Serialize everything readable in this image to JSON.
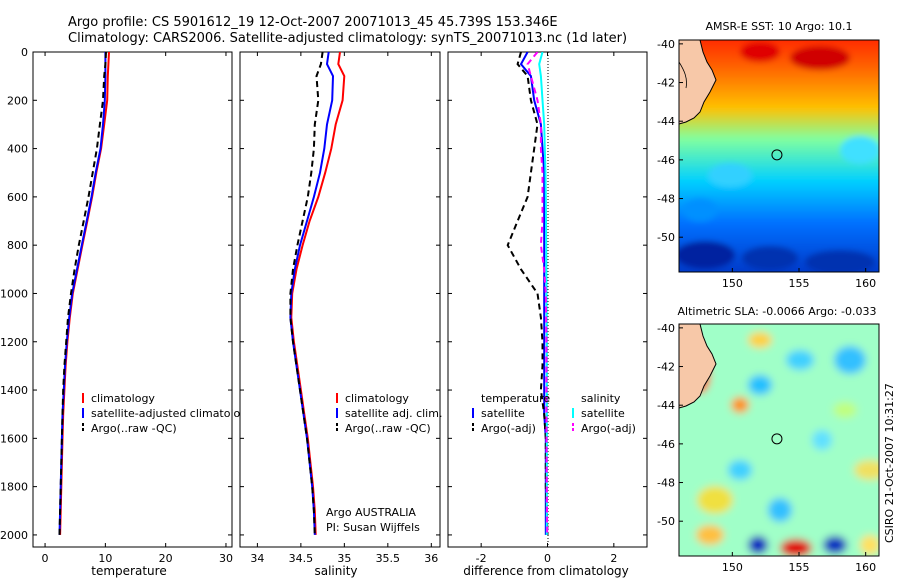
{
  "header": {
    "line1": "Argo profile: CS 5901612_19 12-Oct-2007 20071013_45 45.739S 153.346E",
    "line2": "Climatology: CARS2006. Satellite-adjusted climatology: synTS_20071013.nc (1d later)"
  },
  "side_note": "CSIRO 21-Oct-2007 10:31:27",
  "colors": {
    "climatology": "#ff0000",
    "satellite": "#0000ff",
    "argo": "#000000",
    "sal_satellite": "#00ffff",
    "sal_argo": "#ff00ff",
    "land": "#f7c8a8"
  },
  "chart_data": [
    {
      "type": "line",
      "id": "temperature-profile",
      "xlabel": "temperature",
      "xlim": [
        -2,
        31
      ],
      "ylim": [
        2050,
        0
      ],
      "xticks": [
        "0",
        "10",
        "20",
        "30"
      ],
      "xtick_values": [
        0,
        10,
        20,
        30
      ],
      "yticks": [
        "0",
        "200",
        "400",
        "600",
        "800",
        "1000",
        "1200",
        "1400",
        "1600",
        "1800",
        "2000"
      ],
      "ytick_values": [
        0,
        200,
        400,
        600,
        800,
        1000,
        1200,
        1400,
        1600,
        1800,
        2000
      ],
      "legend": [
        "climatology",
        "satellite-adjusted climatology",
        "Argo(..raw -QC)"
      ],
      "series": [
        {
          "name": "climatology",
          "color": "#ff0000",
          "dash": false,
          "points": [
            [
              10.6,
              0
            ],
            [
              10.5,
              50
            ],
            [
              10.4,
              100
            ],
            [
              10.3,
              200
            ],
            [
              9.8,
              300
            ],
            [
              9.3,
              400
            ],
            [
              8.5,
              500
            ],
            [
              7.8,
              600
            ],
            [
              7.0,
              700
            ],
            [
              6.2,
              800
            ],
            [
              5.4,
              900
            ],
            [
              4.6,
              1000
            ],
            [
              4.1,
              1100
            ],
            [
              3.7,
              1200
            ],
            [
              3.4,
              1300
            ],
            [
              3.2,
              1400
            ],
            [
              3.0,
              1500
            ],
            [
              2.9,
              1600
            ],
            [
              2.8,
              1700
            ],
            [
              2.7,
              1800
            ],
            [
              2.6,
              1900
            ],
            [
              2.5,
              2000
            ]
          ]
        },
        {
          "name": "satellite-adjusted climatology",
          "color": "#0000ff",
          "dash": false,
          "points": [
            [
              10.0,
              0
            ],
            [
              10.0,
              50
            ],
            [
              10.0,
              100
            ],
            [
              9.9,
              200
            ],
            [
              9.6,
              300
            ],
            [
              9.2,
              400
            ],
            [
              8.4,
              500
            ],
            [
              7.7,
              600
            ],
            [
              6.9,
              700
            ],
            [
              6.1,
              800
            ],
            [
              5.3,
              900
            ],
            [
              4.5,
              1000
            ],
            [
              4.0,
              1100
            ],
            [
              3.6,
              1200
            ],
            [
              3.3,
              1300
            ],
            [
              3.1,
              1400
            ],
            [
              2.9,
              1500
            ],
            [
              2.8,
              1600
            ],
            [
              2.7,
              1700
            ],
            [
              2.6,
              1800
            ],
            [
              2.5,
              1900
            ],
            [
              2.4,
              2000
            ]
          ]
        },
        {
          "name": "Argo(..raw -QC)",
          "color": "#000000",
          "dash": true,
          "points": [
            [
              10.1,
              0
            ],
            [
              10.0,
              50
            ],
            [
              9.8,
              100
            ],
            [
              9.6,
              200
            ],
            [
              9.1,
              300
            ],
            [
              8.6,
              400
            ],
            [
              7.9,
              500
            ],
            [
              7.2,
              600
            ],
            [
              6.4,
              700
            ],
            [
              5.6,
              800
            ],
            [
              4.9,
              900
            ],
            [
              4.3,
              1000
            ],
            [
              3.8,
              1100
            ],
            [
              3.5,
              1200
            ],
            [
              3.2,
              1300
            ],
            [
              3.0,
              1400
            ],
            [
              2.9,
              1500
            ],
            [
              2.8,
              1600
            ],
            [
              2.7,
              1700
            ],
            [
              2.6,
              1800
            ],
            [
              2.5,
              1900
            ],
            [
              2.4,
              2000
            ]
          ]
        }
      ]
    },
    {
      "type": "line",
      "id": "salinity-profile",
      "xlabel": "salinity",
      "xlim": [
        33.8,
        36.1
      ],
      "ylim": [
        2050,
        0
      ],
      "xticks": [
        "34",
        "34.5",
        "35",
        "35.5",
        "36"
      ],
      "xtick_values": [
        34,
        34.5,
        35,
        35.5,
        36
      ],
      "legend": [
        "climatology",
        "satellite adj. clim.",
        "Argo(..raw -QC)"
      ],
      "annotation": [
        "Argo AUSTRALIA",
        "PI: Susan Wijffels"
      ],
      "series": [
        {
          "name": "climatology",
          "color": "#ff0000",
          "dash": false,
          "points": [
            [
              34.95,
              0
            ],
            [
              34.93,
              50
            ],
            [
              35.0,
              100
            ],
            [
              34.98,
              200
            ],
            [
              34.9,
              300
            ],
            [
              34.85,
              400
            ],
            [
              34.78,
              500
            ],
            [
              34.7,
              600
            ],
            [
              34.6,
              700
            ],
            [
              34.52,
              800
            ],
            [
              34.45,
              900
            ],
            [
              34.4,
              1000
            ],
            [
              34.39,
              1100
            ],
            [
              34.42,
              1200
            ],
            [
              34.46,
              1300
            ],
            [
              34.5,
              1400
            ],
            [
              34.54,
              1500
            ],
            [
              34.58,
              1600
            ],
            [
              34.61,
              1700
            ],
            [
              34.64,
              1800
            ],
            [
              34.66,
              1900
            ],
            [
              34.67,
              2000
            ]
          ]
        },
        {
          "name": "satellite adj. clim.",
          "color": "#0000ff",
          "dash": false,
          "points": [
            [
              34.82,
              0
            ],
            [
              34.8,
              50
            ],
            [
              34.87,
              100
            ],
            [
              34.86,
              200
            ],
            [
              34.8,
              300
            ],
            [
              34.77,
              400
            ],
            [
              34.72,
              500
            ],
            [
              34.65,
              600
            ],
            [
              34.57,
              700
            ],
            [
              34.49,
              800
            ],
            [
              34.43,
              900
            ],
            [
              34.39,
              1000
            ],
            [
              34.38,
              1100
            ],
            [
              34.41,
              1200
            ],
            [
              34.45,
              1300
            ],
            [
              34.49,
              1400
            ],
            [
              34.53,
              1500
            ],
            [
              34.57,
              1600
            ],
            [
              34.6,
              1700
            ],
            [
              34.63,
              1800
            ],
            [
              34.65,
              1900
            ],
            [
              34.66,
              2000
            ]
          ]
        },
        {
          "name": "Argo(..raw -QC)",
          "color": "#000000",
          "dash": true,
          "points": [
            [
              34.75,
              0
            ],
            [
              34.73,
              50
            ],
            [
              34.68,
              100
            ],
            [
              34.7,
              200
            ],
            [
              34.66,
              300
            ],
            [
              34.65,
              400
            ],
            [
              34.62,
              500
            ],
            [
              34.58,
              600
            ],
            [
              34.52,
              700
            ],
            [
              34.46,
              800
            ],
            [
              34.41,
              900
            ],
            [
              34.38,
              1000
            ],
            [
              34.38,
              1100
            ],
            [
              34.41,
              1200
            ],
            [
              34.45,
              1300
            ],
            [
              34.49,
              1400
            ],
            [
              34.53,
              1500
            ],
            [
              34.57,
              1600
            ],
            [
              34.6,
              1700
            ],
            [
              34.63,
              1800
            ],
            [
              34.65,
              1900
            ],
            [
              34.66,
              2000
            ]
          ]
        }
      ]
    },
    {
      "type": "line",
      "id": "difference-profile",
      "xlabel": "difference from climatology",
      "xlim": [
        -3,
        3
      ],
      "ylim": [
        2050,
        0
      ],
      "xticks": [
        "-2",
        "0",
        "2"
      ],
      "xtick_values": [
        -2,
        0,
        2
      ],
      "legend_groups": [
        {
          "heading": "temperature",
          "items": [
            "satellite",
            "Argo(-adj)"
          ]
        },
        {
          "heading": "salinity",
          "items": [
            "satellite",
            "Argo(-adj)"
          ]
        }
      ],
      "series": [
        {
          "name": "satellite",
          "group": "temperature",
          "color": "#0000ff",
          "dash": false,
          "points": [
            [
              -0.6,
              0
            ],
            [
              -0.8,
              50
            ],
            [
              -0.5,
              100
            ],
            [
              -0.4,
              200
            ],
            [
              -0.2,
              300
            ],
            [
              -0.15,
              400
            ],
            [
              -0.1,
              500
            ],
            [
              -0.1,
              600
            ],
            [
              -0.1,
              700
            ],
            [
              -0.1,
              800
            ],
            [
              -0.1,
              900
            ],
            [
              -0.1,
              1000
            ],
            [
              -0.1,
              1100
            ],
            [
              -0.1,
              1200
            ],
            [
              -0.1,
              1300
            ],
            [
              -0.1,
              1400
            ],
            [
              -0.1,
              1500
            ],
            [
              -0.05,
              1600
            ],
            [
              -0.05,
              1800
            ],
            [
              -0.05,
              2000
            ]
          ]
        },
        {
          "name": "Argo(-adj)",
          "group": "temperature",
          "color": "#000000",
          "dash": true,
          "points": [
            [
              -0.8,
              0
            ],
            [
              -0.9,
              50
            ],
            [
              -0.6,
              100
            ],
            [
              -0.5,
              200
            ],
            [
              -0.3,
              300
            ],
            [
              -0.4,
              400
            ],
            [
              -0.5,
              500
            ],
            [
              -0.6,
              600
            ],
            [
              -0.9,
              700
            ],
            [
              -1.2,
              800
            ],
            [
              -0.8,
              900
            ],
            [
              -0.3,
              1000
            ],
            [
              -0.2,
              1100
            ],
            [
              -0.15,
              1200
            ],
            [
              -0.15,
              1300
            ],
            [
              -0.2,
              1400
            ],
            [
              -0.1,
              1500
            ],
            [
              -0.05,
              1600
            ],
            [
              -0.05,
              1800
            ],
            [
              0.0,
              2000
            ]
          ]
        },
        {
          "name": "satellite",
          "group": "salinity",
          "color": "#00ffff",
          "dash": false,
          "points": [
            [
              -0.15,
              0
            ],
            [
              -0.25,
              50
            ],
            [
              -0.2,
              100
            ],
            [
              -0.15,
              200
            ],
            [
              -0.1,
              300
            ],
            [
              -0.08,
              400
            ],
            [
              -0.06,
              500
            ],
            [
              -0.05,
              600
            ],
            [
              -0.04,
              800
            ],
            [
              -0.03,
              1000
            ],
            [
              -0.02,
              1200
            ],
            [
              -0.02,
              1500
            ],
            [
              -0.02,
              1800
            ],
            [
              -0.02,
              2000
            ]
          ]
        },
        {
          "name": "Argo(-adj)",
          "group": "salinity",
          "color": "#ff00ff",
          "dash": true,
          "points": [
            [
              -0.3,
              0
            ],
            [
              -0.6,
              50
            ],
            [
              -0.5,
              100
            ],
            [
              -0.3,
              200
            ],
            [
              -0.2,
              300
            ],
            [
              -0.2,
              400
            ],
            [
              -0.15,
              500
            ],
            [
              -0.15,
              600
            ],
            [
              -0.15,
              700
            ],
            [
              -0.2,
              800
            ],
            [
              -0.1,
              900
            ],
            [
              -0.05,
              1000
            ],
            [
              -0.03,
              1200
            ],
            [
              -0.03,
              1500
            ],
            [
              -0.02,
              1800
            ],
            [
              -0.01,
              2000
            ]
          ]
        }
      ]
    },
    {
      "type": "heatmap",
      "id": "sst-map",
      "title": "AMSR-E SST: 10 Argo: 10.1",
      "xticks": [
        "150",
        "155",
        "160"
      ],
      "xtick_values": [
        150,
        155,
        160
      ],
      "yticks": [
        "-40",
        "-42",
        "-44",
        "-46",
        "-48",
        "-50"
      ],
      "ytick_values": [
        -40,
        -42,
        -44,
        -46,
        -48,
        -50
      ],
      "xlim": [
        146,
        161
      ],
      "ylim": [
        -51.8,
        -39.8
      ],
      "float_position": [
        153.346,
        -45.739
      ],
      "lat_bands": [
        {
          "lat": -40,
          "color": "#ff2000"
        },
        {
          "lat": -41.5,
          "color": "#ff6000"
        },
        {
          "lat": -43.5,
          "color": "#ffc000"
        },
        {
          "lat": -45,
          "color": "#80ffa0"
        },
        {
          "lat": -47,
          "color": "#00d0ff"
        },
        {
          "lat": -49,
          "color": "#0070ff"
        },
        {
          "lat": -51.8,
          "color": "#0030c0"
        }
      ]
    },
    {
      "type": "heatmap",
      "id": "sla-map",
      "title": "Altimetric SLA: -0.0066 Argo: -0.033",
      "xticks": [
        "150",
        "155",
        "160"
      ],
      "xtick_values": [
        150,
        155,
        160
      ],
      "yticks": [
        "-40",
        "-42",
        "-44",
        "-46",
        "-48",
        "-50"
      ],
      "ytick_values": [
        -40,
        -42,
        -44,
        -46,
        -48,
        -50
      ],
      "xlim": [
        146,
        161
      ],
      "ylim": [
        -51.8,
        -39.8
      ],
      "float_position": [
        153.346,
        -45.739
      ],
      "background_color": "#a0ffc8"
    }
  ]
}
